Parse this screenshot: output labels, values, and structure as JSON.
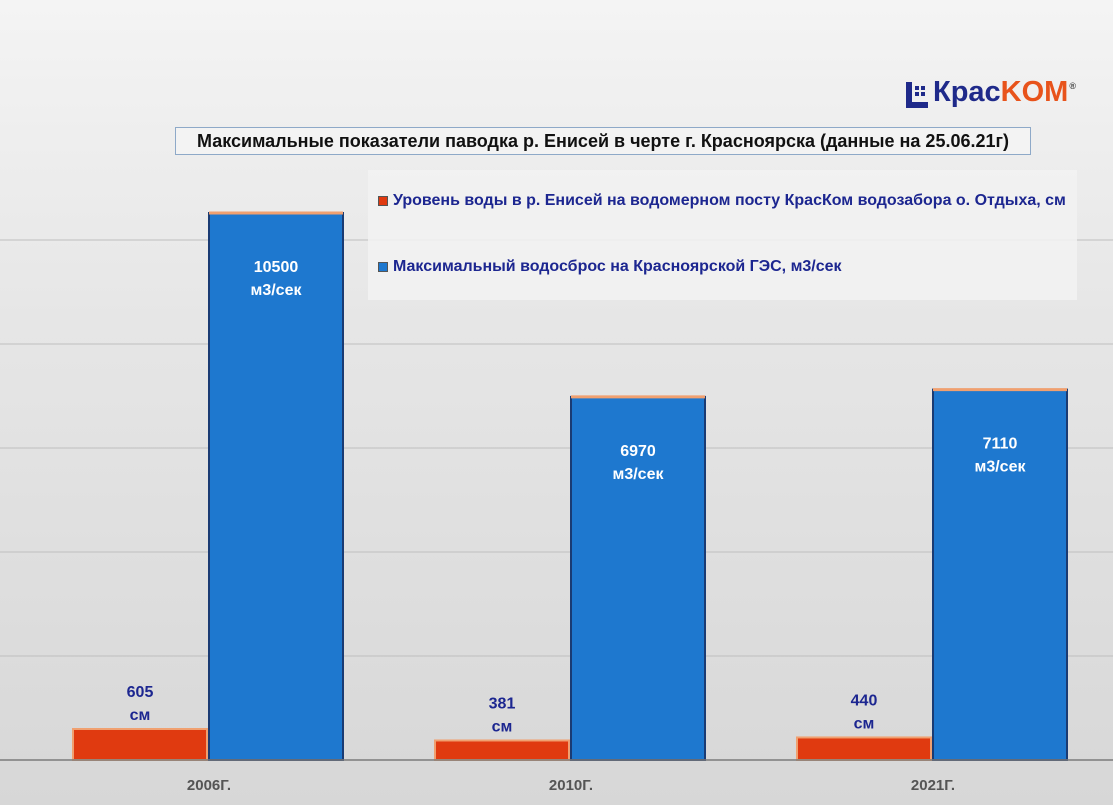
{
  "logo": {
    "text_a": "Кpac",
    "text_b": "KOM",
    "reg": "®"
  },
  "colors": {
    "level": "#e03a10",
    "discharge": "#1e78cf",
    "label_dark": "#1c2690",
    "label_light": "#ffffff"
  },
  "chart_data": {
    "type": "bar",
    "title": "Максимальные показатели паводка р. Енисей в черте г. Красноярска  (данные на 25.06.21г)",
    "categories": [
      "2006Г.",
      "2010Г.",
      "2021Г."
    ],
    "series": [
      {
        "name": "Уровень воды в р. Енисей на водомерном посту КрасКом водозабора о. Отдыха, см",
        "values": [
          605,
          381,
          440
        ],
        "unit": "см"
      },
      {
        "name": "Максимальный водосброс на Красноярской ГЭС, м3/сек",
        "values": [
          10500,
          6970,
          7110
        ],
        "unit": "м3/сек"
      }
    ],
    "legend_position": "top-right",
    "grid": true
  }
}
